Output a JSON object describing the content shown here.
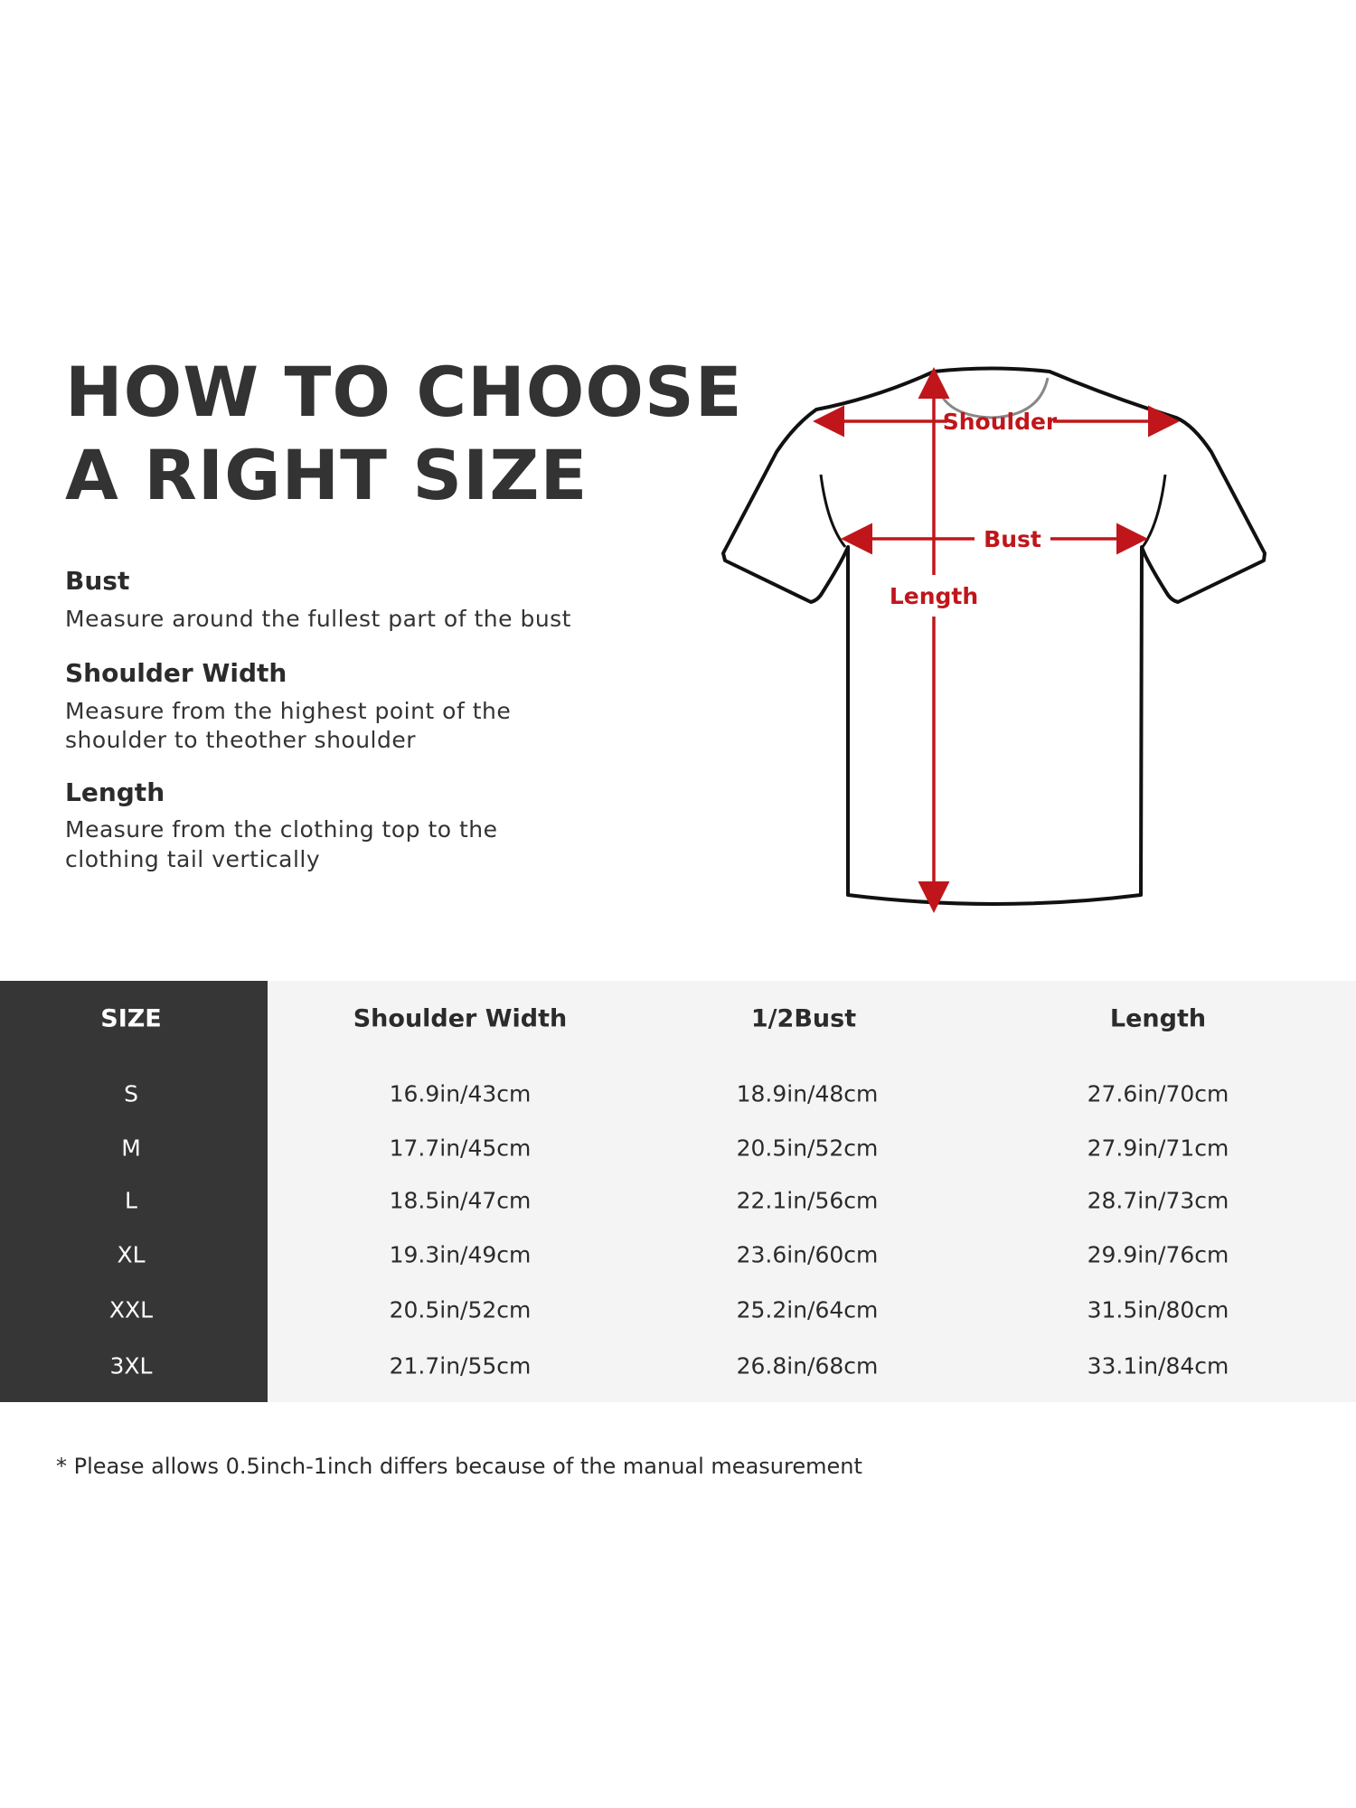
{
  "title": {
    "line1": "HOW TO CHOOSE",
    "line2": "A RIGHT SIZE"
  },
  "guide": [
    {
      "heading": "Bust",
      "lines": [
        "Measure around the fullest part of the bust"
      ]
    },
    {
      "heading": "Shoulder Width",
      "lines": [
        "Measure from the highest point of the",
        "shoulder to theother shoulder"
      ]
    },
    {
      "heading": "Length",
      "lines": [
        "Measure from the clothing top to the",
        "clothing tail vertically"
      ]
    }
  ],
  "diagram": {
    "shoulder_label": "Shoulder",
    "bust_label": "Bust",
    "length_label": "Length",
    "accent_color": "#c0161b"
  },
  "table": {
    "headers": [
      "SIZE",
      "Shoulder Width",
      "1/2Bust",
      "Length"
    ],
    "rows": [
      [
        "S",
        "16.9in/43cm",
        "18.9in/48cm",
        "27.6in/70cm"
      ],
      [
        "M",
        "17.7in/45cm",
        "20.5in/52cm",
        "27.9in/71cm"
      ],
      [
        "L",
        "18.5in/47cm",
        "22.1in/56cm",
        "28.7in/73cm"
      ],
      [
        "XL",
        "19.3in/49cm",
        "23.6in/60cm",
        "29.9in/76cm"
      ],
      [
        "XXL",
        "20.5in/52cm",
        "25.2in/64cm",
        "31.5in/80cm"
      ],
      [
        "3XL",
        "21.7in/55cm",
        "26.8in/68cm",
        "33.1in/84cm"
      ]
    ]
  },
  "footnote": "* Please allows 0.5inch-1inch differs because of the  manual measurement"
}
